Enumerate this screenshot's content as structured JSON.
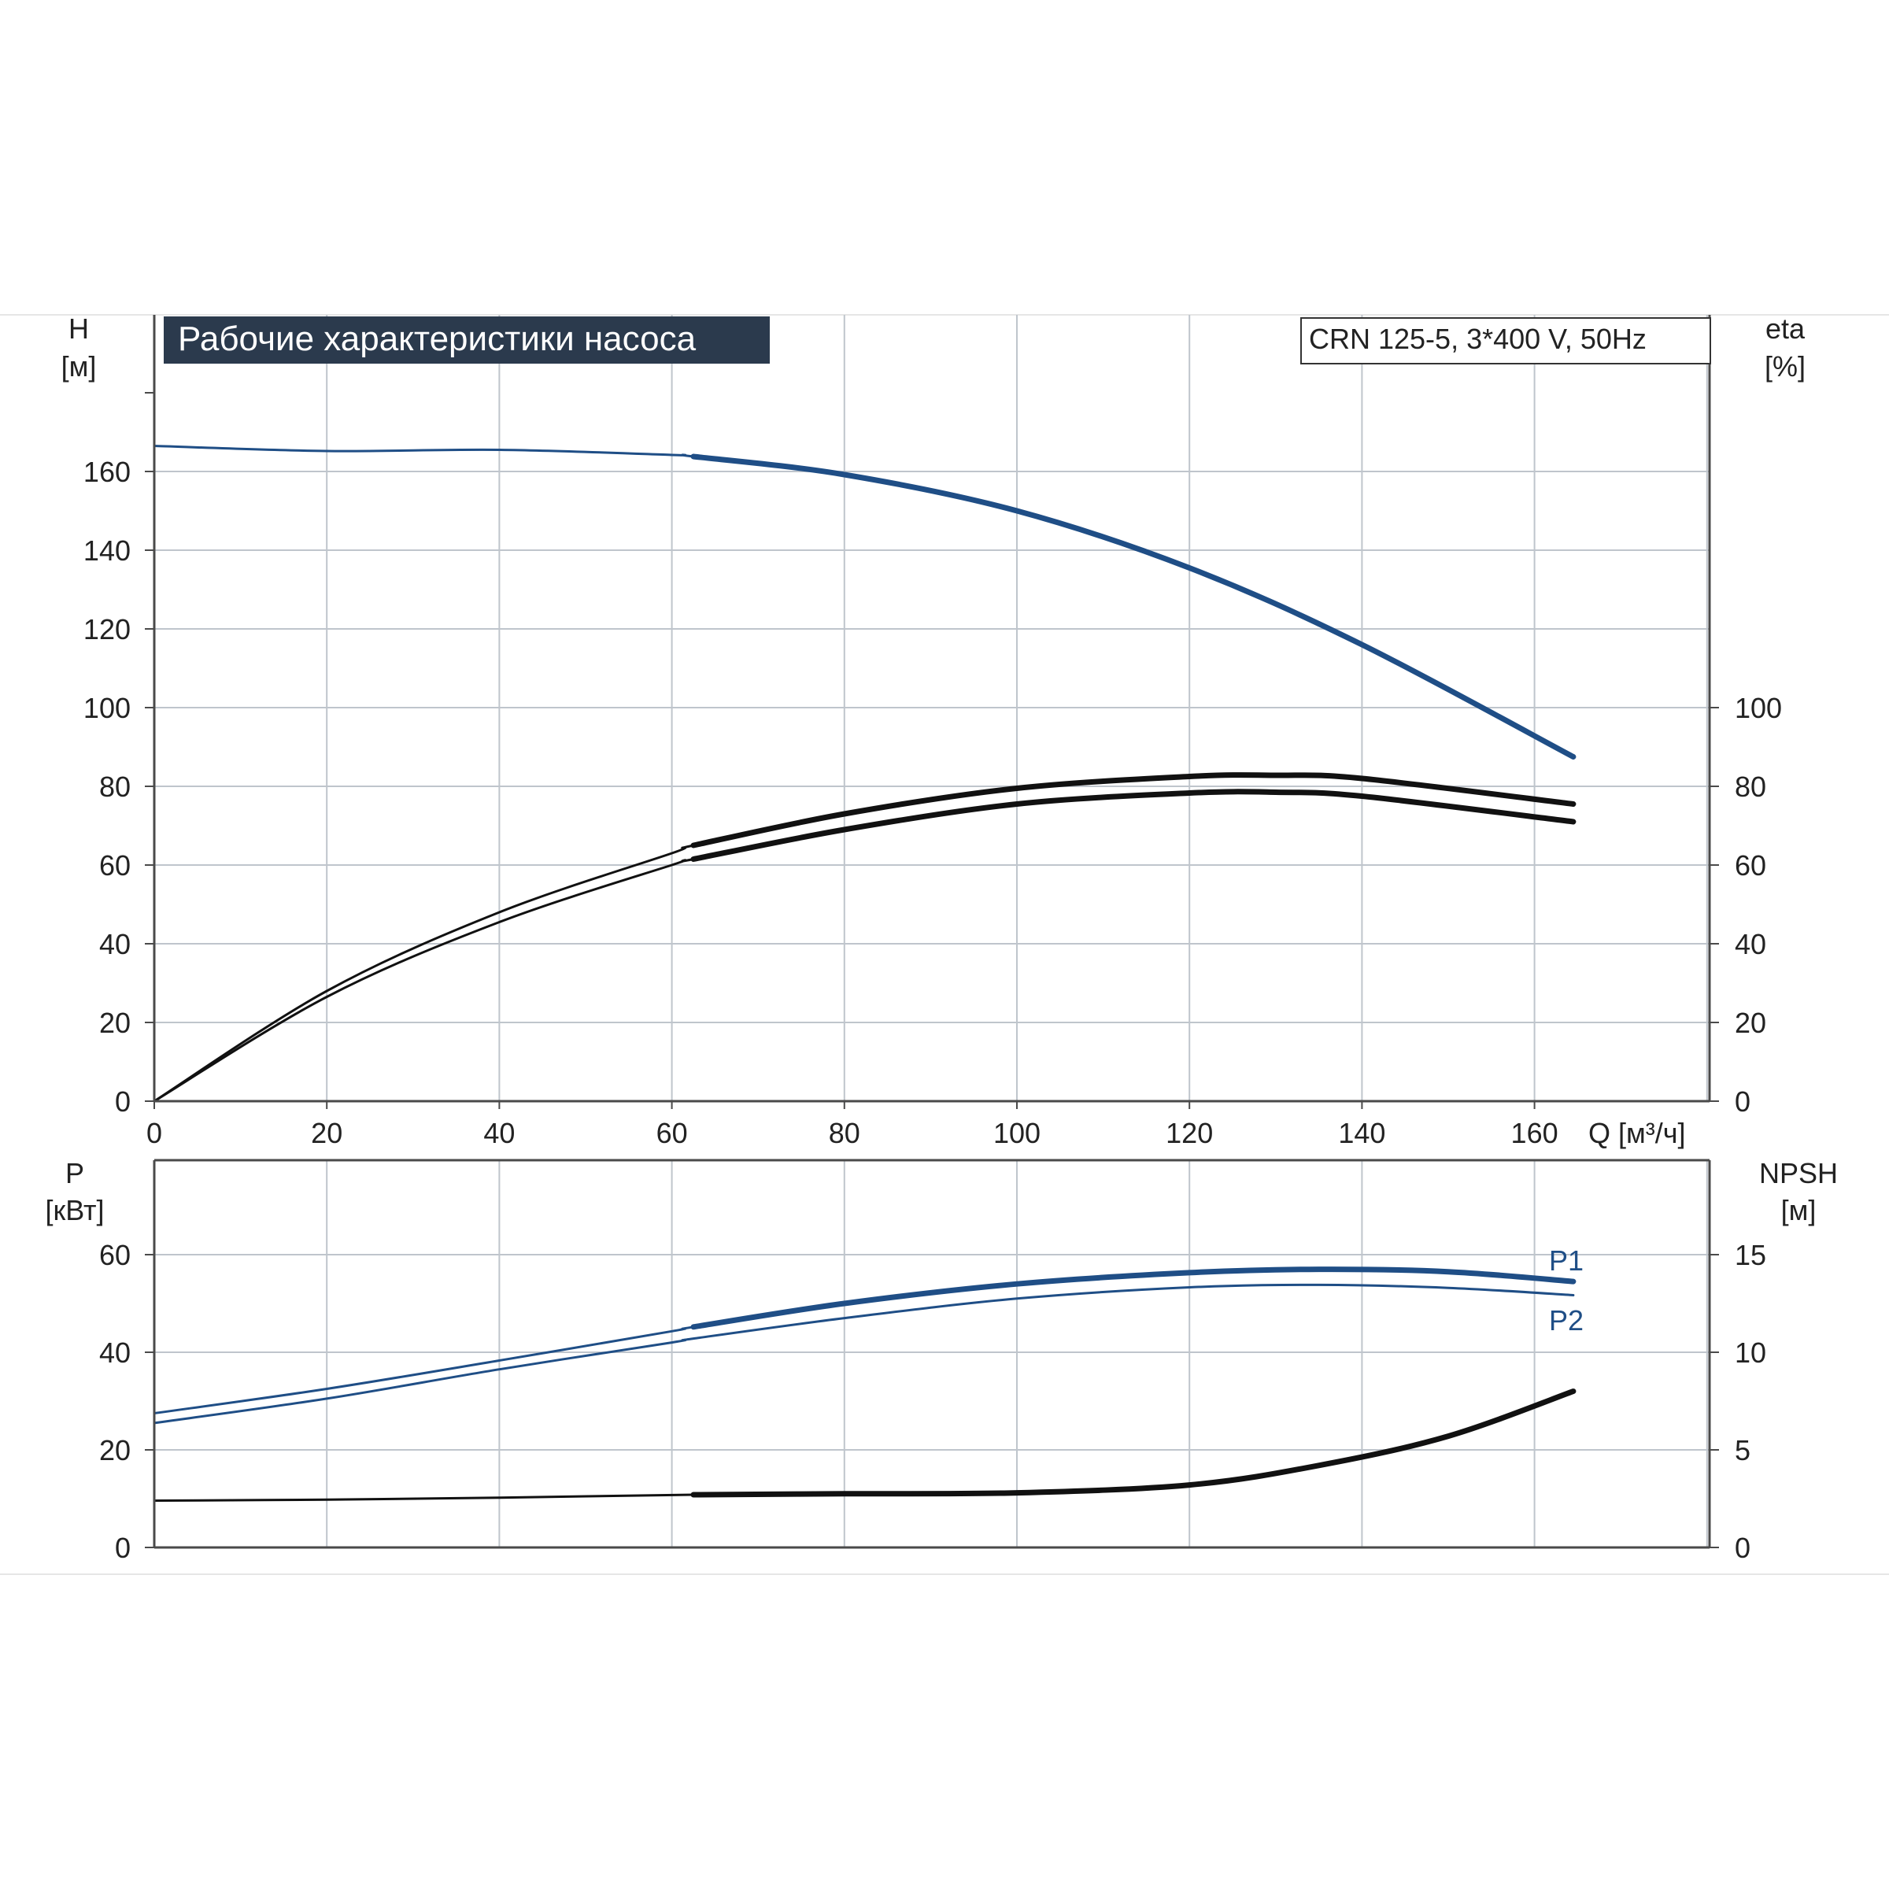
{
  "colors": {
    "background": "#ffffff",
    "grid": "#bfc5cc",
    "axis": "#4a4a4a",
    "blue": "#1f4e86",
    "black": "#111111",
    "title_bg": "#2b3a4d",
    "title_text": "#ffffff",
    "text": "#222222"
  },
  "chart_data": [
    {
      "type": "line",
      "panel": "upper",
      "title": "Рабочие характеристики насоса",
      "model_label": "CRN 125-5, 3*400 V, 50Hz",
      "y_axis_left": {
        "label": "H",
        "unit": "[м]",
        "ticks": [
          "0",
          "20",
          "40",
          "60",
          "80",
          "100",
          "120",
          "140",
          "160"
        ],
        "range": [
          0,
          180
        ]
      },
      "y_axis_right": {
        "label": "eta",
        "unit": "[%]",
        "ticks": [
          "0",
          "20",
          "40",
          "60",
          "80",
          "100"
        ],
        "range": [
          0,
          180
        ]
      },
      "x_axis": {
        "label": "Q [м³/ч]",
        "ticks": [
          "0",
          "20",
          "40",
          "60",
          "80",
          "100",
          "120",
          "140",
          "160"
        ],
        "range": [
          0,
          180
        ]
      },
      "grid": true,
      "series": [
        {
          "color": "blue",
          "axis": "left",
          "heavy_from_x": 62.5,
          "x": [
            0,
            20,
            40,
            60,
            62.5,
            80,
            100,
            120,
            140,
            164.5
          ],
          "y": [
            166.5,
            165.2,
            165.5,
            164.2,
            163.8,
            159.2,
            150,
            135.5,
            116,
            87.5
          ]
        },
        {
          "color": "black",
          "axis": "right",
          "heavy_from_x": 62.5,
          "x": [
            0,
            20,
            40,
            60,
            62.5,
            80,
            100,
            120,
            130,
            140,
            164.5
          ],
          "y": [
            0,
            28,
            48,
            63,
            65,
            73,
            79.5,
            82.5,
            82.8,
            82,
            75.5
          ]
        },
        {
          "color": "black",
          "axis": "right",
          "heavy_from_x": 62.5,
          "x": [
            0,
            20,
            40,
            60,
            62.5,
            80,
            100,
            120,
            130,
            140,
            164.5
          ],
          "y": [
            0,
            26.5,
            45.5,
            60,
            61.5,
            69,
            75.5,
            78.3,
            78.5,
            77.5,
            71
          ]
        }
      ]
    },
    {
      "type": "line",
      "panel": "lower",
      "y_axis_left": {
        "label": "P",
        "unit": "[кВт]",
        "ticks": [
          "0",
          "20",
          "40",
          "60"
        ],
        "range": [
          0,
          80
        ]
      },
      "y_axis_right": {
        "label": "NPSH",
        "unit": "[м]",
        "ticks": [
          "0",
          "5",
          "10",
          "15"
        ],
        "range": [
          0,
          20
        ]
      },
      "x_axis": {
        "range": [
          0,
          180
        ]
      },
      "grid": true,
      "series": [
        {
          "name": "P1",
          "color": "blue",
          "axis": "left",
          "heavy_from_x": 62.5,
          "x": [
            0,
            20,
            40,
            60,
            62.5,
            80,
            100,
            120,
            135,
            150,
            164.5
          ],
          "y": [
            27.5,
            32.5,
            38.3,
            44.3,
            45.2,
            50,
            54,
            56.3,
            57,
            56.5,
            54.5
          ]
        },
        {
          "name": "P2",
          "color": "blue",
          "axis": "left",
          "heavy_from_x": 999,
          "x": [
            0,
            20,
            40,
            60,
            62.5,
            80,
            100,
            120,
            135,
            150,
            164.5
          ],
          "y": [
            25.5,
            30.5,
            36.5,
            42,
            42.8,
            47,
            51,
            53.3,
            53.8,
            53.2,
            51.7
          ]
        },
        {
          "color": "black",
          "axis": "right",
          "heavy_from_x": 62.5,
          "x": [
            0,
            20,
            40,
            62.5,
            80,
            100,
            120,
            135,
            150,
            164.5
          ],
          "y": [
            2.4,
            2.45,
            2.55,
            2.7,
            2.75,
            2.8,
            3.2,
            4.2,
            5.7,
            8
          ]
        }
      ]
    }
  ]
}
